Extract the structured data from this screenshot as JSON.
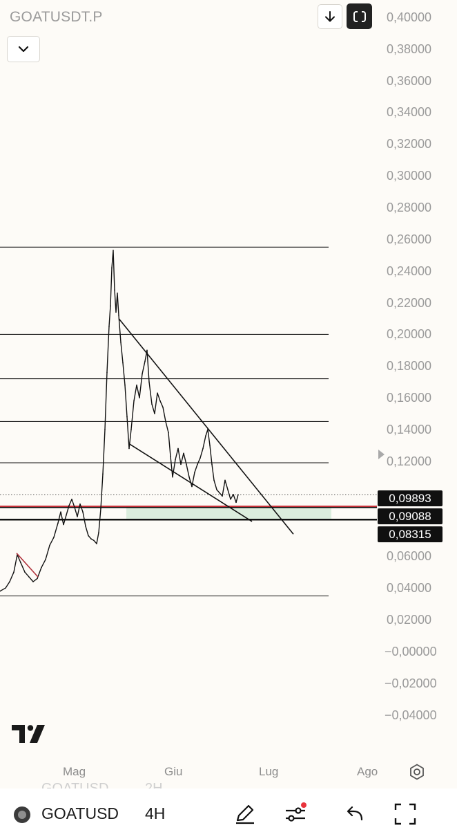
{
  "header": {
    "symbol": "GOATUSDT.P",
    "download_icon": "arrow-down-icon",
    "fullscreen_icon": "fullscreen-icon",
    "collapse_icon": "chevron-down-icon"
  },
  "chart_data": {
    "type": "line",
    "symbol": "GOATUSDT.P",
    "timeframe": "4H",
    "y_axis": {
      "ticks": [
        "0,40000",
        "0,38000",
        "0,36000",
        "0,34000",
        "0,32000",
        "0,30000",
        "0,28000",
        "0,26000",
        "0,24000",
        "0,22000",
        "0,20000",
        "0,18000",
        "0,16000",
        "0,14000",
        "0,12000",
        "0,06000",
        "0,04000",
        "0,02000",
        "−0,00000",
        "−0,02000",
        "−0,04000"
      ],
      "range": [
        -0.045,
        0.405
      ]
    },
    "x_axis": {
      "ticks": [
        "Mag",
        "Giu",
        "Lug",
        "Ago"
      ]
    },
    "price_series": [
      {
        "x": 0,
        "y": 0.038
      },
      {
        "x": 8,
        "y": 0.04
      },
      {
        "x": 14,
        "y": 0.044
      },
      {
        "x": 20,
        "y": 0.05
      },
      {
        "x": 25,
        "y": 0.061
      },
      {
        "x": 30,
        "y": 0.056
      },
      {
        "x": 36,
        "y": 0.05
      },
      {
        "x": 42,
        "y": 0.047
      },
      {
        "x": 48,
        "y": 0.044
      },
      {
        "x": 54,
        "y": 0.046
      },
      {
        "x": 60,
        "y": 0.053
      },
      {
        "x": 66,
        "y": 0.058
      },
      {
        "x": 72,
        "y": 0.067
      },
      {
        "x": 78,
        "y": 0.072
      },
      {
        "x": 84,
        "y": 0.081
      },
      {
        "x": 88,
        "y": 0.088
      },
      {
        "x": 92,
        "y": 0.08
      },
      {
        "x": 96,
        "y": 0.086
      },
      {
        "x": 100,
        "y": 0.092
      },
      {
        "x": 104,
        "y": 0.096
      },
      {
        "x": 108,
        "y": 0.091
      },
      {
        "x": 112,
        "y": 0.085
      },
      {
        "x": 116,
        "y": 0.093
      },
      {
        "x": 120,
        "y": 0.088
      },
      {
        "x": 124,
        "y": 0.079
      },
      {
        "x": 128,
        "y": 0.073
      },
      {
        "x": 132,
        "y": 0.071
      },
      {
        "x": 136,
        "y": 0.07
      },
      {
        "x": 140,
        "y": 0.068
      },
      {
        "x": 143,
        "y": 0.075
      },
      {
        "x": 146,
        "y": 0.09
      },
      {
        "x": 149,
        "y": 0.112
      },
      {
        "x": 152,
        "y": 0.14
      },
      {
        "x": 155,
        "y": 0.176
      },
      {
        "x": 158,
        "y": 0.205
      },
      {
        "x": 160,
        "y": 0.218
      },
      {
        "x": 162,
        "y": 0.242
      },
      {
        "x": 164,
        "y": 0.253
      },
      {
        "x": 166,
        "y": 0.228
      },
      {
        "x": 168,
        "y": 0.214
      },
      {
        "x": 170,
        "y": 0.226
      },
      {
        "x": 172,
        "y": 0.212
      },
      {
        "x": 175,
        "y": 0.195
      },
      {
        "x": 178,
        "y": 0.182
      },
      {
        "x": 181,
        "y": 0.168
      },
      {
        "x": 184,
        "y": 0.148
      },
      {
        "x": 187,
        "y": 0.128
      },
      {
        "x": 190,
        "y": 0.14
      },
      {
        "x": 194,
        "y": 0.158
      },
      {
        "x": 198,
        "y": 0.168
      },
      {
        "x": 202,
        "y": 0.16
      },
      {
        "x": 206,
        "y": 0.175
      },
      {
        "x": 210,
        "y": 0.183
      },
      {
        "x": 213,
        "y": 0.19
      },
      {
        "x": 216,
        "y": 0.17
      },
      {
        "x": 220,
        "y": 0.156
      },
      {
        "x": 224,
        "y": 0.15
      },
      {
        "x": 228,
        "y": 0.163
      },
      {
        "x": 232,
        "y": 0.158
      },
      {
        "x": 236,
        "y": 0.154
      },
      {
        "x": 240,
        "y": 0.145
      },
      {
        "x": 244,
        "y": 0.138
      },
      {
        "x": 247,
        "y": 0.123
      },
      {
        "x": 250,
        "y": 0.11
      },
      {
        "x": 254,
        "y": 0.121
      },
      {
        "x": 258,
        "y": 0.128
      },
      {
        "x": 262,
        "y": 0.118
      },
      {
        "x": 266,
        "y": 0.125
      },
      {
        "x": 270,
        "y": 0.118
      },
      {
        "x": 274,
        "y": 0.11
      },
      {
        "x": 278,
        "y": 0.104
      },
      {
        "x": 282,
        "y": 0.113
      },
      {
        "x": 286,
        "y": 0.118
      },
      {
        "x": 290,
        "y": 0.122
      },
      {
        "x": 294,
        "y": 0.128
      },
      {
        "x": 298,
        "y": 0.136
      },
      {
        "x": 301,
        "y": 0.14
      },
      {
        "x": 304,
        "y": 0.13
      },
      {
        "x": 307,
        "y": 0.118
      },
      {
        "x": 310,
        "y": 0.108
      },
      {
        "x": 314,
        "y": 0.102
      },
      {
        "x": 318,
        "y": 0.1
      },
      {
        "x": 322,
        "y": 0.098
      },
      {
        "x": 326,
        "y": 0.108
      },
      {
        "x": 330,
        "y": 0.102
      },
      {
        "x": 334,
        "y": 0.096
      },
      {
        "x": 338,
        "y": 0.099
      },
      {
        "x": 342,
        "y": 0.094
      },
      {
        "x": 345,
        "y": 0.0989
      }
    ],
    "horizontal_levels": [
      0.255,
      0.2,
      0.172,
      0.145,
      0.119,
      0.035
    ],
    "last_price_line": 0.09893,
    "red_level": 0.09088,
    "black_level": 0.08315,
    "support_zone": {
      "from": 0.08315,
      "to": 0.09088
    },
    "trendlines": [
      {
        "name": "wedge-upper",
        "x1": 172,
        "y1": 0.21,
        "x2": 425,
        "y2": 0.074
      },
      {
        "name": "wedge-lower",
        "x1": 187,
        "y1": 0.131,
        "x2": 365,
        "y2": 0.082
      },
      {
        "name": "small-upper",
        "x1": 24,
        "y1": 0.062,
        "x2": 55,
        "y2": 0.047
      }
    ],
    "price_labels": {
      "last": "0,09893",
      "red": "0,09088",
      "black": "0,08315"
    }
  },
  "footer": {
    "logo": "tradingview-logo",
    "settings_icon": "gear-icon",
    "ghost_symbol": "GOATUSD",
    "ghost_timeframe": "2H",
    "symbol_short": "GOATUSD",
    "timeframe": "4H",
    "icons": [
      "symbol-avatar-icon",
      "pencil-icon",
      "sliders-icon",
      "undo-icon",
      "fullscreen-icon"
    ]
  }
}
